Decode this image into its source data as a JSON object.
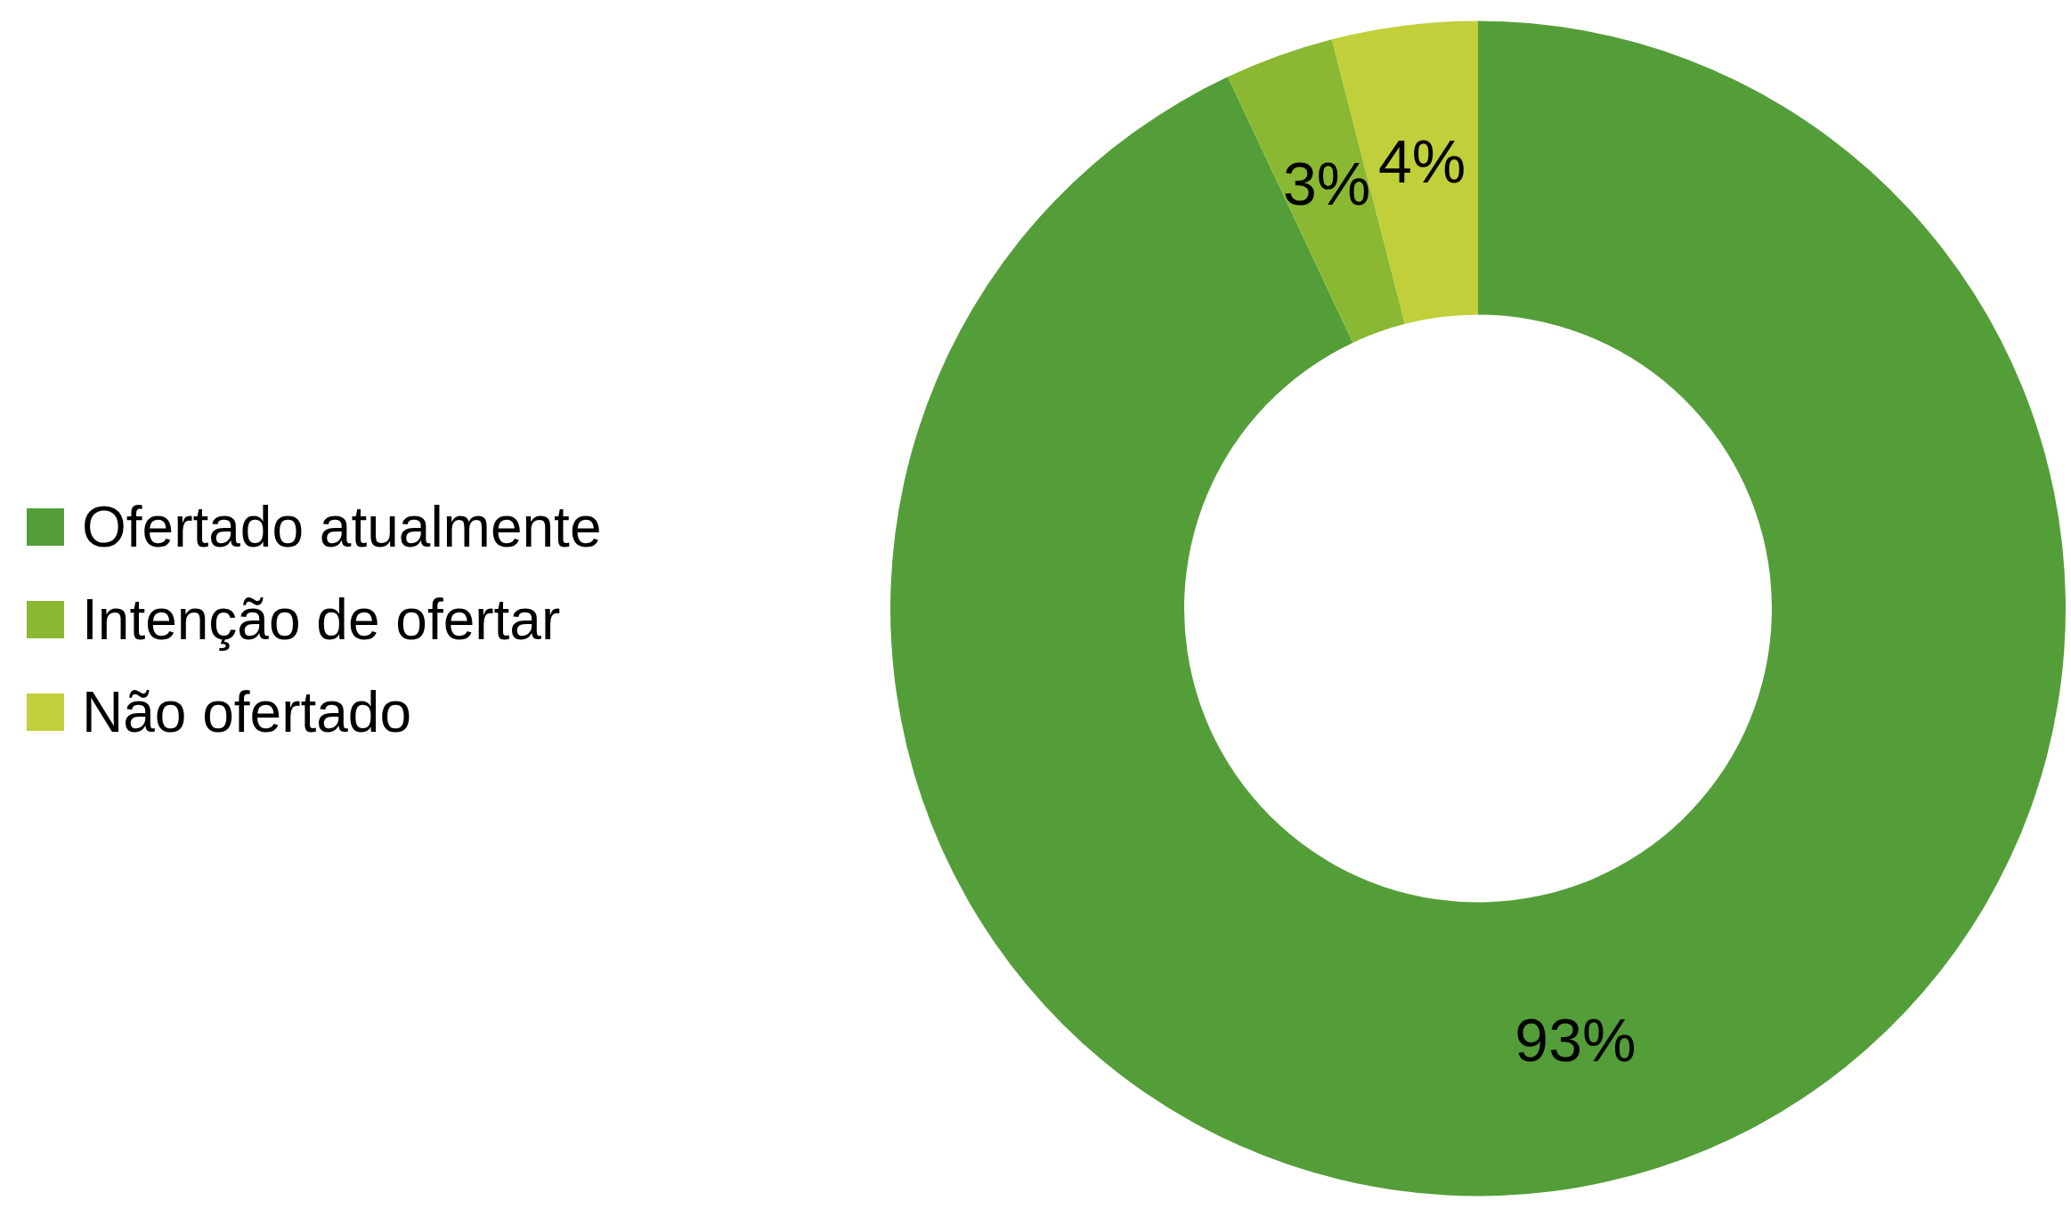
{
  "chart_data": {
    "type": "donut",
    "categories": [
      "Ofertado atualmente",
      "Intenção de ofertar",
      "Não ofertado"
    ],
    "values": [
      93,
      3,
      4
    ],
    "colors": [
      "#549e39",
      "#8ab833",
      "#c0cf3a"
    ],
    "legend": "left",
    "value_labels": [
      "93%",
      "3%",
      "4%"
    ]
  }
}
